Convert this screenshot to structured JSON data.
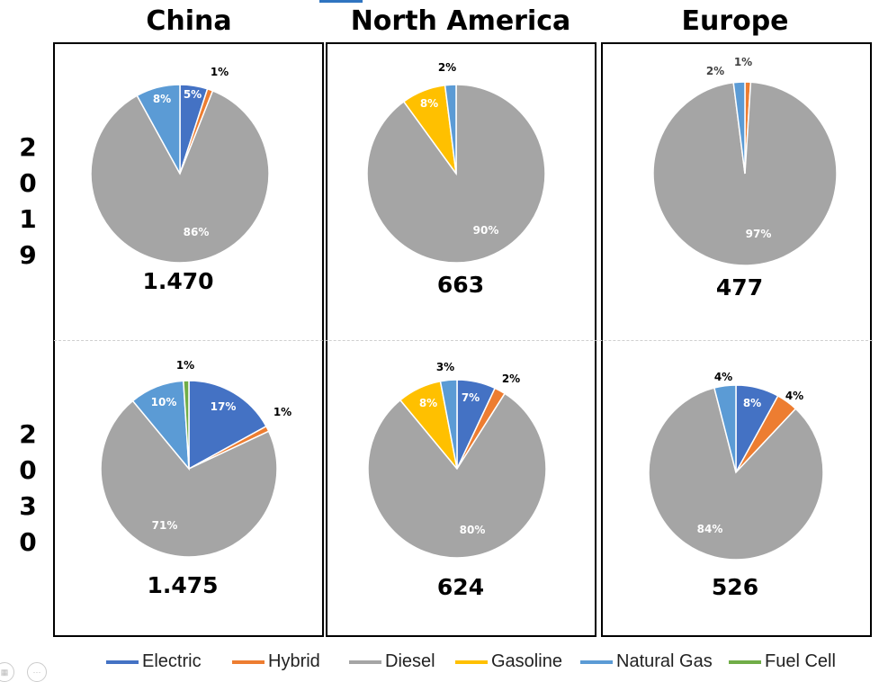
{
  "regions": [
    "China",
    "North America",
    "Europe"
  ],
  "years": [
    "2019",
    "2030"
  ],
  "legend": [
    {
      "label": "Electric",
      "color": "#4472c4"
    },
    {
      "label": "Hybrid",
      "color": "#ed7d31"
    },
    {
      "label": "Diesel",
      "color": "#a5a5a5"
    },
    {
      "label": "Gasoline",
      "color": "#ffc000"
    },
    {
      "label": "Natural Gas",
      "color": "#5b9bd5"
    },
    {
      "label": "Fuel Cell",
      "color": "#70ad47"
    }
  ],
  "chart_data": [
    {
      "type": "pie",
      "region": "China",
      "year": "2019",
      "total": "1.470",
      "slices": [
        {
          "name": "Electric",
          "value": 5,
          "label": "5%"
        },
        {
          "name": "Hybrid",
          "value": 1,
          "label": "1%"
        },
        {
          "name": "Diesel",
          "value": 86,
          "label": "86%"
        },
        {
          "name": "Natural Gas",
          "value": 8,
          "label": "8%"
        }
      ]
    },
    {
      "type": "pie",
      "region": "North America",
      "year": "2019",
      "total": "663",
      "slices": [
        {
          "name": "Diesel",
          "value": 90,
          "label": "90%"
        },
        {
          "name": "Gasoline",
          "value": 8,
          "label": "8%"
        },
        {
          "name": "Natural Gas",
          "value": 2,
          "label": "2%"
        }
      ]
    },
    {
      "type": "pie",
      "region": "Europe",
      "year": "2019",
      "total": "477",
      "slices": [
        {
          "name": "Hybrid",
          "value": 1,
          "label": "1%"
        },
        {
          "name": "Diesel",
          "value": 97,
          "label": "97%"
        },
        {
          "name": "Natural Gas",
          "value": 2,
          "label": "2%"
        }
      ]
    },
    {
      "type": "pie",
      "region": "China",
      "year": "2030",
      "total": "1.475",
      "slices": [
        {
          "name": "Electric",
          "value": 17,
          "label": "17%"
        },
        {
          "name": "Hybrid",
          "value": 1,
          "label": "1%"
        },
        {
          "name": "Diesel",
          "value": 71,
          "label": "71%"
        },
        {
          "name": "Natural Gas",
          "value": 10,
          "label": "10%"
        },
        {
          "name": "Fuel Cell",
          "value": 1,
          "label": "1%"
        }
      ]
    },
    {
      "type": "pie",
      "region": "North America",
      "year": "2030",
      "total": "624",
      "slices": [
        {
          "name": "Electric",
          "value": 7,
          "label": "7%"
        },
        {
          "name": "Hybrid",
          "value": 2,
          "label": "2%"
        },
        {
          "name": "Diesel",
          "value": 80,
          "label": "80%"
        },
        {
          "name": "Gasoline",
          "value": 8,
          "label": "8%"
        },
        {
          "name": "Natural Gas",
          "value": 3,
          "label": "3%"
        }
      ]
    },
    {
      "type": "pie",
      "region": "Europe",
      "year": "2030",
      "total": "526",
      "slices": [
        {
          "name": "Electric",
          "value": 8,
          "label": "8%"
        },
        {
          "name": "Hybrid",
          "value": 4,
          "label": "4%"
        },
        {
          "name": "Diesel",
          "value": 84,
          "label": "84%"
        },
        {
          "name": "Natural Gas",
          "value": 4,
          "label": "4%"
        }
      ]
    }
  ]
}
